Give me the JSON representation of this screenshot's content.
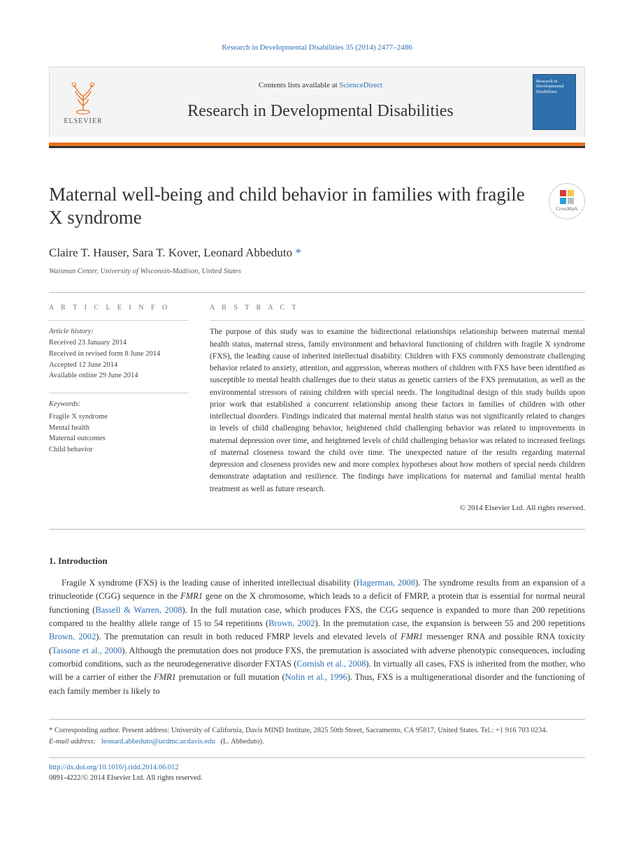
{
  "running_head": "Research in Developmental Disabilities 35 (2014) 2477–2486",
  "masthead": {
    "contents_prefix": "Contents lists available at ",
    "contents_link": "ScienceDirect",
    "journal": "Research in Developmental Disabilities",
    "elsevier_label": "ELSEVIER",
    "cover_text": "Research in Developmental Disabilities"
  },
  "crossmark_label": "CrossMark",
  "title": "Maternal well-being and child behavior in families with fragile X syndrome",
  "authors_line": "Claire T. Hauser, Sara T. Kover, Leonard Abbeduto",
  "corr_marker": " *",
  "affiliation": "Waisman Center, University of Wisconsin-Madison, United States",
  "article_info_head": "A R T I C L E   I N F O",
  "abstract_head": "A B S T R A C T",
  "history_label": "Article history:",
  "history_lines": [
    "Received 23 January 2014",
    "Received in revised form 8 June 2014",
    "Accepted 12 June 2014",
    "Available online 29 June 2014"
  ],
  "keywords_label": "Keywords:",
  "keywords": [
    "Fragile X syndrome",
    "Mental health",
    "Maternal outcomes",
    "Child behavior"
  ],
  "abstract": "The purpose of this study was to examine the bidirectional relationships relationship between maternal mental health status, maternal stress, family environment and behavioral functioning of children with fragile X syndrome (FXS), the leading cause of inherited intellectual disability. Children with FXS commonly demonstrate challenging behavior related to anxiety, attention, and aggression, whereas mothers of children with FXS have been identified as susceptible to mental health challenges due to their status as genetic carriers of the FXS premutation, as well as the environmental stressors of raising children with special needs. The longitudinal design of this study builds upon prior work that established a concurrent relationship among these factors in families of children with other intellectual disorders. Findings indicated that maternal mental health status was not significantly related to changes in levels of child challenging behavior, heightened child challenging behavior was related to improvements in maternal depression over time, and heightened levels of child challenging behavior was related to increased feelings of maternal closeness toward the child over time. The unexpected nature of the results regarding maternal depression and closeness provides new and more complex hypotheses about how mothers of special needs children demonstrate adaptation and resilience. The findings have implications for maternal and familial mental health treatment as well as future research.",
  "copyright": "© 2014 Elsevier Ltd. All rights reserved.",
  "section1_head": "1. Introduction",
  "intro_paragraph_parts": [
    {
      "t": "plain",
      "v": "Fragile X syndrome (FXS) is the leading cause of inherited intellectual disability ("
    },
    {
      "t": "cite",
      "v": "Hagerman, 2008"
    },
    {
      "t": "plain",
      "v": "). The syndrome results from an expansion of a trinucleotide (CGG) sequence in the "
    },
    {
      "t": "gene",
      "v": "FMR1"
    },
    {
      "t": "plain",
      "v": " gene on the X chromosome, which leads to a deficit of FMRP, a protein that is essential for normal neural functioning ("
    },
    {
      "t": "cite",
      "v": "Bassell & Warren, 2008"
    },
    {
      "t": "plain",
      "v": "). In the full mutation case, which produces FXS, the CGG sequence is expanded to more than 200 repetitions compared to the healthy allele range of 15 to 54 repetitions ("
    },
    {
      "t": "cite",
      "v": "Brown, 2002"
    },
    {
      "t": "plain",
      "v": "). In the premutation case, the expansion is between 55 and 200 repetitions "
    },
    {
      "t": "cite",
      "v": "Brown, 2002"
    },
    {
      "t": "plain",
      "v": "). The premutation can result in both reduced FMRP levels and elevated levels of "
    },
    {
      "t": "gene",
      "v": "FMR1"
    },
    {
      "t": "plain",
      "v": " messenger RNA and possible RNA toxicity ("
    },
    {
      "t": "cite",
      "v": "Tassone et al., 2000"
    },
    {
      "t": "plain",
      "v": "). Although the premutation does not produce FXS, the premutation is associated with adverse phenotypic consequences, including comorbid conditions, such as the neurodegenerative disorder FXTAS ("
    },
    {
      "t": "cite",
      "v": "Cornish et al., 2008"
    },
    {
      "t": "plain",
      "v": "). In virtually all cases, FXS is inherited from the mother, who will be a carrier of either the "
    },
    {
      "t": "gene",
      "v": "FMR1"
    },
    {
      "t": "plain",
      "v": " premutation or full mutation ("
    },
    {
      "t": "cite",
      "v": "Nolin et al., 1996"
    },
    {
      "t": "plain",
      "v": "). Thus, FXS is a multigenerational disorder and the functioning of each family member is likely to"
    }
  ],
  "footnote_corr": "* Corresponding author. Present address: University of California, Davis MIND Institute, 2825 50th Street, Sacramento, CA 95817, United States. Tel.: +1 916 703 0234.",
  "footnote_email_label": "E-mail address:",
  "footnote_email": "leonard.abbeduto@ucdmc.ucdavis.edu",
  "footnote_email_author": "(L. Abbeduto).",
  "doi": "http://dx.doi.org/10.1016/j.ridd.2014.06.012",
  "issn_line": "0891-4222/© 2014 Elsevier Ltd. All rights reserved.",
  "colors": {
    "link": "#2b6fb3",
    "orange": "#e9711c",
    "text": "#333333",
    "cover_bg": "#2e70ad"
  }
}
